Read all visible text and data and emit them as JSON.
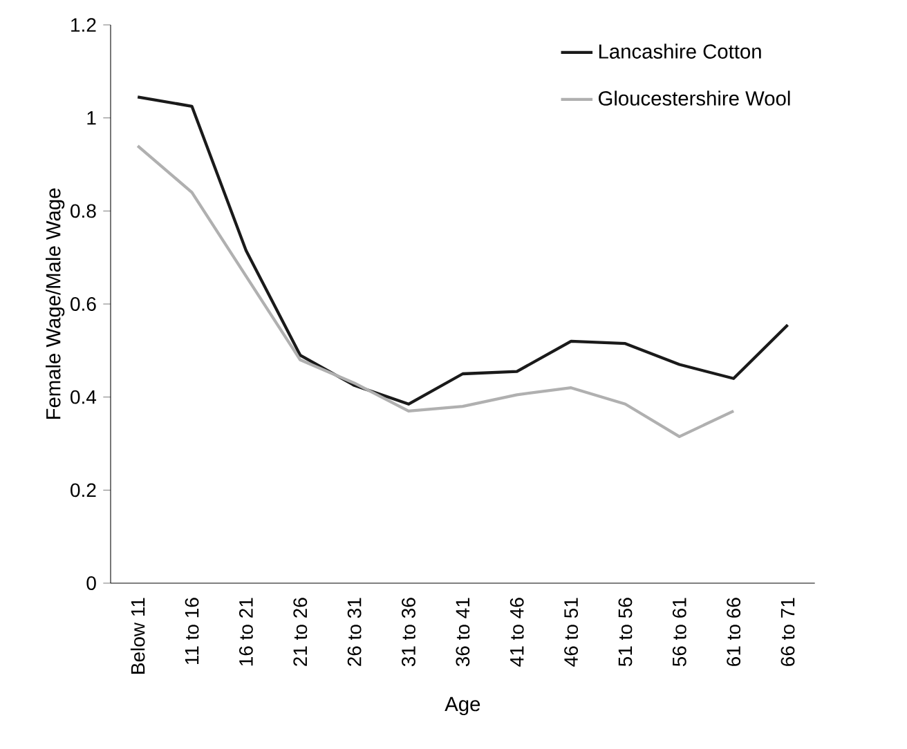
{
  "chart_data": {
    "type": "line",
    "xlabel": "Age",
    "ylabel": "Female Wage/Male Wage",
    "categories": [
      "Below 11",
      "11 to 16",
      "16 to 21",
      "21 to 26",
      "26 to 31",
      "31 to 36",
      "36 to 41",
      "41 to 46",
      "46 to 51",
      "51 to 56",
      "56 to 61",
      "61 to 66",
      "66 to 71"
    ],
    "series": [
      {
        "name": "Lancashire Cotton",
        "color": "#1a1a1a",
        "values": [
          1.045,
          1.025,
          0.715,
          0.49,
          0.425,
          0.385,
          0.45,
          0.455,
          0.52,
          0.515,
          0.47,
          0.44,
          0.555
        ]
      },
      {
        "name": "Gloucestershire Wool",
        "color": "#b0b0b0",
        "values": [
          0.94,
          0.84,
          0.66,
          0.48,
          0.43,
          0.37,
          0.38,
          0.405,
          0.42,
          0.385,
          0.315,
          0.37,
          null
        ]
      }
    ],
    "ylim": [
      0,
      1.2
    ],
    "yticks": [
      0,
      0.2,
      0.4,
      0.6,
      0.8,
      1,
      1.2
    ],
    "grid": false,
    "legend": "top right",
    "marker": "none",
    "line_style": "solid"
  }
}
